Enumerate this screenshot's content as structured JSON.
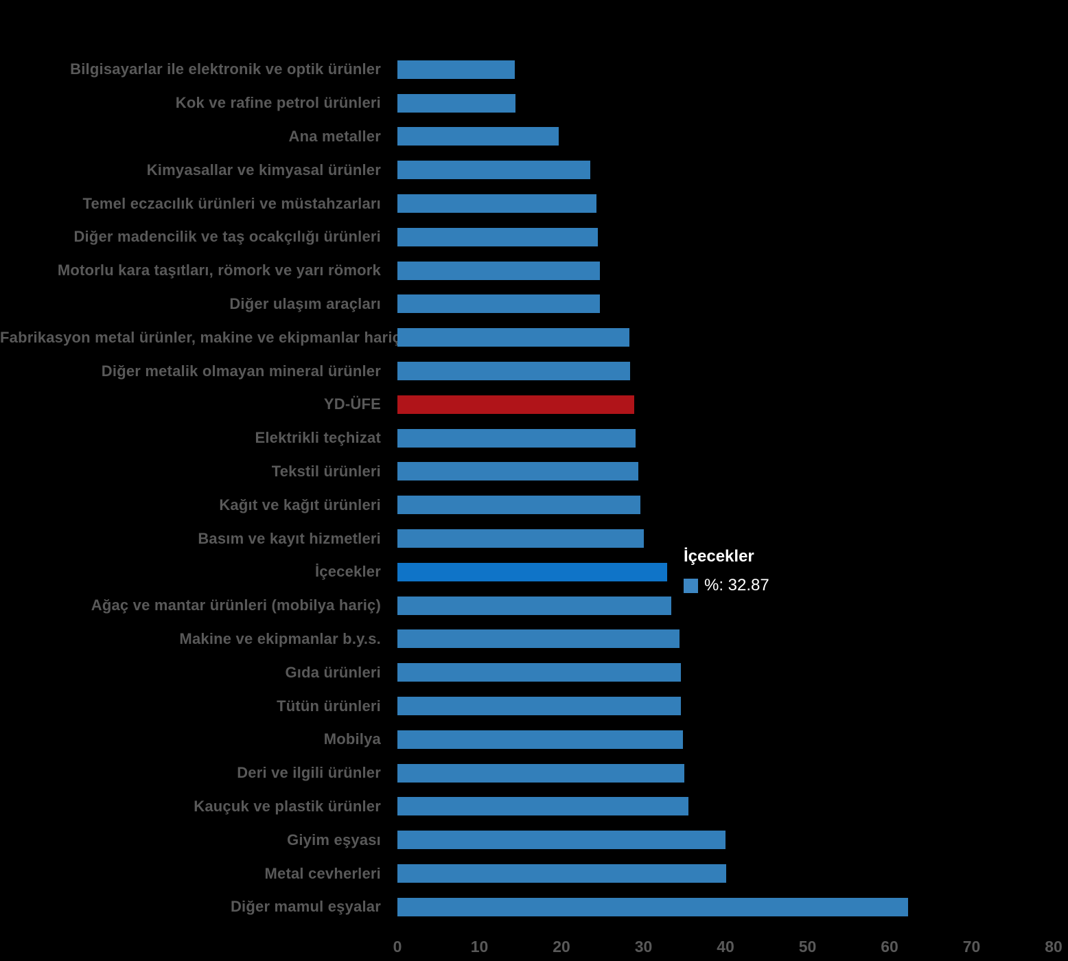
{
  "chart_data": {
    "type": "bar",
    "orientation": "horizontal",
    "title": "",
    "xlabel": "",
    "ylabel": "",
    "xlim": [
      0,
      80
    ],
    "x_ticks": [
      0,
      10,
      20,
      30,
      40,
      50,
      60,
      70,
      80
    ],
    "grid": false,
    "legend_position": "none",
    "series_name": "%",
    "categories": [
      "Bilgisayarlar ile elektronik ve optik ürünler",
      "Kok ve rafine petrol ürünleri",
      "Ana metaller",
      "Kimyasallar ve kimyasal ürünler",
      "Temel eczacılık ürünleri ve müstahzarları",
      "Diğer madencilik ve taş ocakçılığı ürünleri",
      "Motorlu kara taşıtları, römork ve yarı römork",
      "Diğer ulaşım araçları",
      "Fabrikasyon metal ürünler, makine ve ekipmanlar hariç",
      "Diğer metalik olmayan mineral ürünler",
      "YD-ÜFE",
      "Elektrikli teçhizat",
      "Tekstil ürünleri",
      "Kağıt ve kağıt ürünleri",
      "Basım ve kayıt hizmetleri",
      "İçecekler",
      "Ağaç ve mantar ürünleri (mobilya hariç)",
      "Makine ve ekipmanlar b.y.s.",
      "Gıda ürünleri",
      "Tütün ürünleri",
      "Mobilya",
      "Deri ve ilgili ürünler",
      "Kauçuk ve plastik ürünler",
      "Giyim eşyası",
      "Metal cevherleri",
      "Diğer mamul eşyalar"
    ],
    "values": [
      14.3,
      14.4,
      19.7,
      23.5,
      24.3,
      24.4,
      24.7,
      24.7,
      28.3,
      28.4,
      28.9,
      29.0,
      29.4,
      29.6,
      30.0,
      32.87,
      33.4,
      34.4,
      34.6,
      34.6,
      34.8,
      35.0,
      35.5,
      40.0,
      40.1,
      62.3
    ],
    "red_category": "YD-ÜFE",
    "highlighted_category": "İçecekler",
    "highlighted_value": 32.87,
    "colors": {
      "bar": "#337fba",
      "bar_highlight": "#0f74c8",
      "bar_red": "#b01419",
      "label_text": "#595959",
      "tick_text": "#595959",
      "background": "#000000",
      "tooltip_text": "#ffffff",
      "tooltip_swatch": "#3d87c3"
    }
  },
  "tooltip": {
    "title": "İçecekler",
    "value_text": "%: 32.87"
  }
}
